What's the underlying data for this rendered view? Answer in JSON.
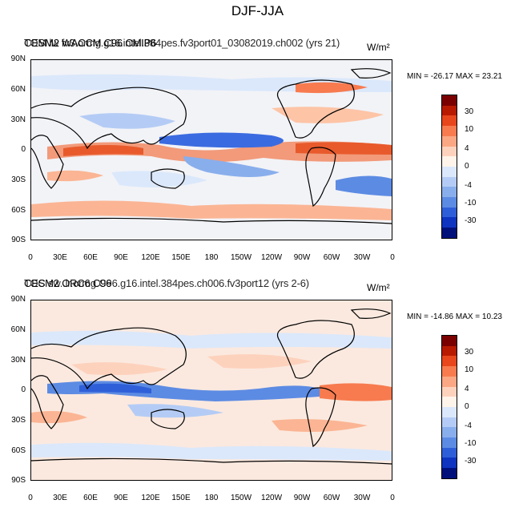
{
  "figure": {
    "title": "DJF-JJA"
  },
  "panels": [
    {
      "id": "top",
      "title_line1": "CESM2 WACCM C96 CMIP6",
      "title_line2": "TOM lw fv3.ormg.g16.intel.384pes.fv3port01_03082019.ch002 (yrs 21)",
      "units": "W/m²",
      "min_max": "MIN = -26.17 MAX =  23.21"
    },
    {
      "id": "bottom",
      "title_line1": "CESM2 ORC6 C96",
      "title_line2": "TOC sw..lr.ormg.C96.g16.intel.384pes.ch006.fv3port12 (yrs 2-6)",
      "units": "W/m²",
      "min_max": "MIN = -14.86 MAX =  10.23"
    }
  ],
  "lat_labels": [
    "90N",
    "60N",
    "30N",
    "0",
    "30S",
    "60S",
    "90S"
  ],
  "lon_labels": [
    "0",
    "30E",
    "60E",
    "90E",
    "120E",
    "150E",
    "180",
    "150W",
    "120W",
    "90W",
    "60W",
    "30W",
    "0"
  ],
  "colorbar": {
    "labels": [
      "30",
      "10",
      "4",
      "0",
      "-4",
      "-10",
      "-30"
    ],
    "colors": [
      "#7a0000",
      "#b81a00",
      "#e8461c",
      "#f77b4f",
      "#fba784",
      "#fdd2bd",
      "#fff4ea",
      "#dbe8fb",
      "#b4ccf5",
      "#89aeec",
      "#5c8be3",
      "#2f5fd8",
      "#0f34c0",
      "#00107a"
    ]
  }
}
